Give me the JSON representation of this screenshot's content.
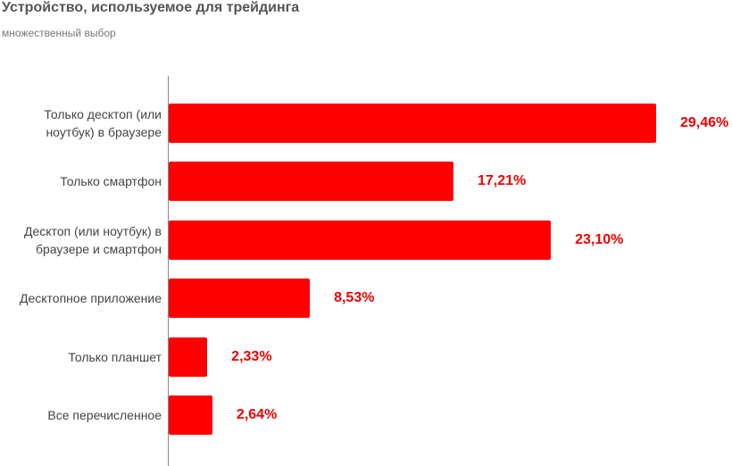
{
  "chart_data": {
    "type": "bar",
    "orientation": "horizontal",
    "title": "Устройство, используемое для трейдинга",
    "subtitle": "множественный выбор",
    "categories": [
      "Только десктоп (или ноутбук) в браузере",
      "Только смартфон",
      "Десктоп (или ноутбук) в браузере и смартфон",
      "Десктопное приложение",
      "Только планшет",
      "Все перечисленное"
    ],
    "values": [
      29.46,
      17.21,
      23.1,
      8.53,
      2.33,
      2.64
    ],
    "value_labels": [
      "29,46%",
      "17,21%",
      "23,10%",
      "8,53%",
      "2,33%",
      "2,64%"
    ],
    "color": "#ff0000"
  }
}
